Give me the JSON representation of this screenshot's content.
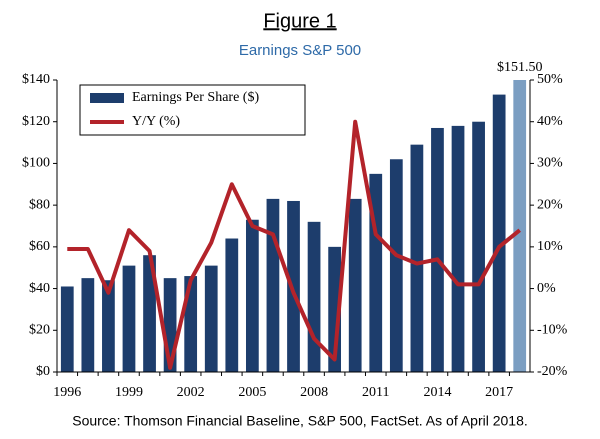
{
  "chart_data": {
    "type": "bar",
    "title": "Figure 1",
    "subtitle": "Earnings S&P 500",
    "source": "Source: Thomson Financial Baseline, S&P 500, FactSet. As of April 2018.",
    "categories": [
      "1996",
      null,
      null,
      "1999",
      null,
      null,
      "2002",
      null,
      null,
      "2005",
      null,
      null,
      "2008",
      null,
      null,
      "2011",
      null,
      null,
      "2014",
      null,
      null,
      "2017",
      null
    ],
    "series": [
      {
        "name": "Earnings Per Share ($)",
        "type": "bar",
        "color": "#1d3d6c",
        "colors": [
          "#1d3d6c",
          "#1d3d6c",
          "#1d3d6c",
          "#1d3d6c",
          "#1d3d6c",
          "#1d3d6c",
          "#1d3d6c",
          "#1d3d6c",
          "#1d3d6c",
          "#1d3d6c",
          "#1d3d6c",
          "#1d3d6c",
          "#1d3d6c",
          "#1d3d6c",
          "#1d3d6c",
          "#1d3d6c",
          "#1d3d6c",
          "#1d3d6c",
          "#1d3d6c",
          "#1d3d6c",
          "#1d3d6c",
          "#1d3d6c",
          "#7b9ec2"
        ],
        "values": [
          41,
          45,
          44,
          51,
          56,
          45,
          46,
          51,
          64,
          73,
          83,
          82,
          72,
          60,
          83,
          95,
          102,
          109,
          117,
          118,
          120,
          133,
          151.5
        ],
        "value_labels": [
          null,
          null,
          null,
          null,
          null,
          null,
          null,
          null,
          null,
          null,
          null,
          null,
          null,
          null,
          null,
          null,
          null,
          null,
          null,
          null,
          null,
          null,
          "$151.50"
        ]
      },
      {
        "name": "Y/Y (%)",
        "type": "line",
        "axis": "y2",
        "color": "#b3232a",
        "values": [
          9.5,
          9.5,
          -1,
          14,
          9,
          -19,
          2,
          11,
          25,
          15,
          13,
          -1,
          -12,
          -17,
          40,
          13,
          8,
          6,
          7,
          1,
          1,
          10,
          14
        ]
      }
    ],
    "ylim": [
      0,
      140
    ],
    "yticks": [
      {
        "value": 0,
        "label": "$0"
      },
      {
        "value": 20,
        "label": "$20"
      },
      {
        "value": 40,
        "label": "$40"
      },
      {
        "value": 60,
        "label": "$60"
      },
      {
        "value": 80,
        "label": "$80"
      },
      {
        "value": 100,
        "label": "$100"
      },
      {
        "value": 120,
        "label": "$120"
      },
      {
        "value": 140,
        "label": "$140"
      }
    ],
    "y2lim": [
      -20,
      50
    ],
    "y2ticks": [
      {
        "value": -20,
        "label": "-20%"
      },
      {
        "value": -10,
        "label": "-10%"
      },
      {
        "value": 0,
        "label": "0%"
      },
      {
        "value": 10,
        "label": "10%"
      },
      {
        "value": 20,
        "label": "20%"
      },
      {
        "value": 30,
        "label": "30%"
      },
      {
        "value": 40,
        "label": "40%"
      },
      {
        "value": 50,
        "label": "50%"
      }
    ],
    "grid": false,
    "legend": "top-left"
  }
}
